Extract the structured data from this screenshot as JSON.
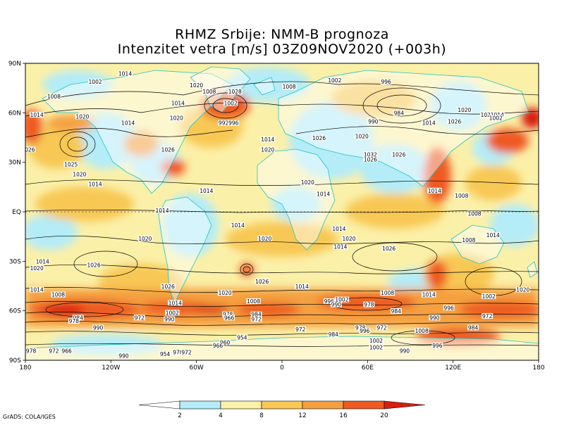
{
  "title_line1": "RHMZ Srbije: NMM-B prognoza",
  "title_line2": "Intenzitet vetra [m/s] 03Z09NOV2020 (+003h)",
  "credit": "GrADS: COLA/IGES",
  "lat_labels": [
    "90N",
    "60N",
    "30N",
    "EQ",
    "30S",
    "60S",
    "90S"
  ],
  "lon_labels": [
    "180",
    "120W",
    "60W",
    "0",
    "60E",
    "120E",
    "180"
  ],
  "colorbar": {
    "ticks": [
      "2",
      "4",
      "8",
      "12",
      "16",
      "20"
    ],
    "colors": [
      "#ffffff",
      "#b4ecf8",
      "#fbf0a8",
      "#f8c855",
      "#f4a040",
      "#ee5a22",
      "#d81e10"
    ]
  },
  "isobar_labels": [
    {
      "text": "1014",
      "lon": -110,
      "lat": 83
    },
    {
      "text": "1002",
      "lon": -131,
      "lat": 78
    },
    {
      "text": "1002",
      "lon": 37,
      "lat": 79
    },
    {
      "text": "996",
      "lon": 73,
      "lat": 78
    },
    {
      "text": "1008",
      "lon": -160,
      "lat": 69
    },
    {
      "text": "1020",
      "lon": -60,
      "lat": 76
    },
    {
      "text": "1008",
      "lon": -51,
      "lat": 72
    },
    {
      "text": "1028",
      "lon": -33,
      "lat": 72
    },
    {
      "text": "1008",
      "lon": 5,
      "lat": 75
    },
    {
      "text": "1014",
      "lon": -73,
      "lat": 65
    },
    {
      "text": "1002",
      "lon": -36,
      "lat": 65
    },
    {
      "text": "1020",
      "lon": 128,
      "lat": 61
    },
    {
      "text": "1014",
      "lon": -172,
      "lat": 58
    },
    {
      "text": "1020",
      "lon": -140,
      "lat": 57
    },
    {
      "text": "1020",
      "lon": -74,
      "lat": 56
    },
    {
      "text": "984",
      "lon": 82,
      "lat": 59
    },
    {
      "text": "1020",
      "lon": 144,
      "lat": 58
    },
    {
      "text": "1014",
      "lon": 151,
      "lat": 58
    },
    {
      "text": "1014",
      "lon": -108,
      "lat": 53
    },
    {
      "text": "1002",
      "lon": 150,
      "lat": 56
    },
    {
      "text": "992",
      "lon": -41,
      "lat": 53
    },
    {
      "text": "996",
      "lon": -34,
      "lat": 53
    },
    {
      "text": "990",
      "lon": 64,
      "lat": 54
    },
    {
      "text": "1014",
      "lon": 103,
      "lat": 53
    },
    {
      "text": "1026",
      "lon": 121,
      "lat": 54
    },
    {
      "text": "1020",
      "lon": 56,
      "lat": 45
    },
    {
      "text": "1026",
      "lon": 26,
      "lat": 44
    },
    {
      "text": "1014",
      "lon": -10,
      "lat": 43
    },
    {
      "text": "1026",
      "lon": -80,
      "lat": 37
    },
    {
      "text": "1020",
      "lon": -10,
      "lat": 37
    },
    {
      "text": "1026",
      "lon": -178,
      "lat": 37
    },
    {
      "text": "1032",
      "lon": 62,
      "lat": 34
    },
    {
      "text": "1026",
      "lon": 82,
      "lat": 34
    },
    {
      "text": "1026",
      "lon": 62,
      "lat": 31
    },
    {
      "text": "1025",
      "lon": -148,
      "lat": 28
    },
    {
      "text": "1020",
      "lon": -142,
      "lat": 22
    },
    {
      "text": "1020",
      "lon": 18,
      "lat": 17
    },
    {
      "text": "1014",
      "lon": -131,
      "lat": 16
    },
    {
      "text": "1014",
      "lon": -53,
      "lat": 12
    },
    {
      "text": "1014",
      "lon": 29,
      "lat": 10
    },
    {
      "text": "1014",
      "lon": 107,
      "lat": 12
    },
    {
      "text": "1008",
      "lon": 126,
      "lat": 9
    },
    {
      "text": "1014",
      "lon": -84,
      "lat": 0
    },
    {
      "text": "1008",
      "lon": 135,
      "lat": -2
    },
    {
      "text": "1014",
      "lon": -31,
      "lat": -9
    },
    {
      "text": "1014",
      "lon": 40,
      "lat": -11
    },
    {
      "text": "1020",
      "lon": 47,
      "lat": -17
    },
    {
      "text": "1014",
      "lon": 41,
      "lat": -22
    },
    {
      "text": "1020",
      "lon": -96,
      "lat": -17
    },
    {
      "text": "1020",
      "lon": -12,
      "lat": -17
    },
    {
      "text": "1026",
      "lon": 75,
      "lat": -23
    },
    {
      "text": "1008",
      "lon": 131,
      "lat": -18
    },
    {
      "text": "1014",
      "lon": 148,
      "lat": -15
    },
    {
      "text": "1014",
      "lon": -168,
      "lat": -31
    },
    {
      "text": "1020",
      "lon": -172,
      "lat": -35
    },
    {
      "text": "1026",
      "lon": -132,
      "lat": -33
    },
    {
      "text": "1026",
      "lon": -80,
      "lat": -46
    },
    {
      "text": "1026",
      "lon": -14,
      "lat": -43
    },
    {
      "text": "1014",
      "lon": 14,
      "lat": -46
    },
    {
      "text": "1014",
      "lon": -172,
      "lat": -48
    },
    {
      "text": "1008",
      "lon": -157,
      "lat": -51
    },
    {
      "text": "1020",
      "lon": -40,
      "lat": -50
    },
    {
      "text": "1008",
      "lon": -20,
      "lat": -55
    },
    {
      "text": "1014",
      "lon": -75,
      "lat": -56
    },
    {
      "text": "996",
      "lon": 33,
      "lat": -55
    },
    {
      "text": "1002",
      "lon": 42,
      "lat": -54
    },
    {
      "text": "990",
      "lon": 38,
      "lat": -57
    },
    {
      "text": "978",
      "lon": 61,
      "lat": -57
    },
    {
      "text": "1008",
      "lon": 74,
      "lat": -50
    },
    {
      "text": "1014",
      "lon": 103,
      "lat": -51
    },
    {
      "text": "1002",
      "lon": 145,
      "lat": -52
    },
    {
      "text": "1020",
      "lon": 169,
      "lat": -48
    },
    {
      "text": "996",
      "lon": 117,
      "lat": -59
    },
    {
      "text": "1002",
      "lon": -77,
      "lat": -62
    },
    {
      "text": "984",
      "lon": -143,
      "lat": -65
    },
    {
      "text": "978",
      "lon": -146,
      "lat": -67
    },
    {
      "text": "972",
      "lon": -100,
      "lat": -65
    },
    {
      "text": "990",
      "lon": -79,
      "lat": -66
    },
    {
      "text": "978",
      "lon": -38,
      "lat": -63
    },
    {
      "text": "966",
      "lon": -37,
      "lat": -65
    },
    {
      "text": "984",
      "lon": -18,
      "lat": -63
    },
    {
      "text": "972",
      "lon": -18,
      "lat": -66
    },
    {
      "text": "984",
      "lon": 80,
      "lat": -61
    },
    {
      "text": "990",
      "lon": 107,
      "lat": -65
    },
    {
      "text": "972",
      "lon": 144,
      "lat": -64
    },
    {
      "text": "984",
      "lon": 134,
      "lat": -71
    },
    {
      "text": "990",
      "lon": -129,
      "lat": -71
    },
    {
      "text": "972",
      "lon": 13,
      "lat": -72
    },
    {
      "text": "978",
      "lon": 55,
      "lat": -71
    },
    {
      "text": "996",
      "lon": 58,
      "lat": -73
    },
    {
      "text": "972",
      "lon": 70,
      "lat": -71
    },
    {
      "text": "1008",
      "lon": 98,
      "lat": -73
    },
    {
      "text": "984",
      "lon": 36,
      "lat": -75
    },
    {
      "text": "954",
      "lon": -28,
      "lat": -77
    },
    {
      "text": "960",
      "lon": -40,
      "lat": -80
    },
    {
      "text": "966",
      "lon": -45,
      "lat": -82
    },
    {
      "text": "1002",
      "lon": 66,
      "lat": -79
    },
    {
      "text": "1002",
      "lon": 66,
      "lat": -83
    },
    {
      "text": "996",
      "lon": 109,
      "lat": -82
    },
    {
      "text": "990",
      "lon": 86,
      "lat": -85
    },
    {
      "text": "978",
      "lon": -176,
      "lat": -85
    },
    {
      "text": "972",
      "lon": -160,
      "lat": -85
    },
    {
      "text": "966",
      "lon": -151,
      "lat": -85
    },
    {
      "text": "990",
      "lon": -111,
      "lat": -88
    },
    {
      "text": "954",
      "lon": -82,
      "lat": -87
    },
    {
      "text": "978",
      "lon": -73,
      "lat": -86
    },
    {
      "text": "972",
      "lon": -67,
      "lat": -86
    }
  ]
}
